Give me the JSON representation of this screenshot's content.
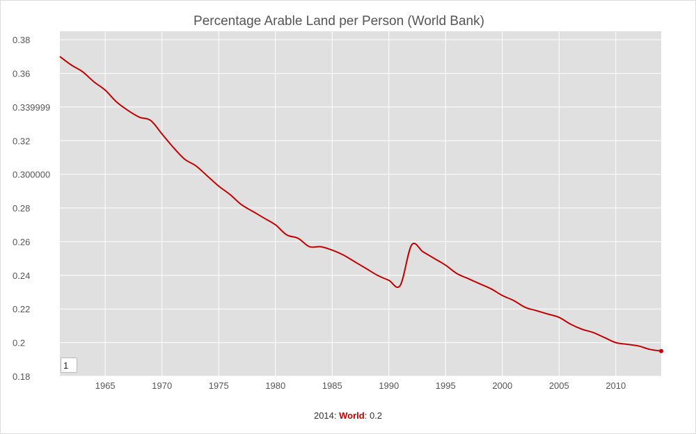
{
  "chart_data": {
    "type": "line",
    "title": "Percentage Arable Land per Person (World Bank)",
    "xlim": [
      1961,
      2014
    ],
    "ylim": [
      0.18,
      0.385
    ],
    "x_ticks": [
      1965,
      1970,
      1975,
      1980,
      1985,
      1990,
      1995,
      2000,
      2005,
      2010
    ],
    "y_ticks": [
      {
        "value": 0.18,
        "label": "0.18"
      },
      {
        "value": 0.2,
        "label": "0.2"
      },
      {
        "value": 0.22,
        "label": "0.22"
      },
      {
        "value": 0.24,
        "label": "0.24"
      },
      {
        "value": 0.26,
        "label": "0.26"
      },
      {
        "value": 0.28,
        "label": "0.28"
      },
      {
        "value": 0.3,
        "label": "0.300000"
      },
      {
        "value": 0.32,
        "label": "0.32"
      },
      {
        "value": 0.34,
        "label": "0.339999"
      },
      {
        "value": 0.36,
        "label": "0.36"
      },
      {
        "value": 0.38,
        "label": "0.38"
      }
    ],
    "grid": true,
    "series": [
      {
        "name": "World",
        "color": "#c00000",
        "x": [
          1961,
          1962,
          1963,
          1964,
          1965,
          1966,
          1967,
          1968,
          1969,
          1970,
          1971,
          1972,
          1973,
          1974,
          1975,
          1976,
          1977,
          1978,
          1979,
          1980,
          1981,
          1982,
          1983,
          1984,
          1985,
          1986,
          1987,
          1988,
          1989,
          1990,
          1991,
          1992,
          1993,
          1994,
          1995,
          1996,
          1997,
          1998,
          1999,
          2000,
          2001,
          2002,
          2003,
          2004,
          2005,
          2006,
          2007,
          2008,
          2009,
          2010,
          2011,
          2012,
          2013,
          2014
        ],
        "values": [
          0.37,
          0.365,
          0.361,
          0.355,
          0.35,
          0.343,
          0.338,
          0.334,
          0.332,
          0.324,
          0.316,
          0.309,
          0.305,
          0.299,
          0.293,
          0.288,
          0.282,
          0.278,
          0.274,
          0.27,
          0.264,
          0.262,
          0.257,
          0.257,
          0.255,
          0.252,
          0.248,
          0.244,
          0.24,
          0.237,
          0.234,
          0.258,
          0.254,
          0.25,
          0.246,
          0.241,
          0.238,
          0.235,
          0.232,
          0.228,
          0.225,
          0.221,
          0.219,
          0.217,
          0.215,
          0.211,
          0.208,
          0.206,
          0.203,
          0.2,
          0.199,
          0.198,
          0.196,
          0.195
        ]
      }
    ]
  },
  "legend": {
    "year": "2014",
    "series_name": "World",
    "value": "0.2"
  },
  "roller": {
    "value": "1"
  }
}
